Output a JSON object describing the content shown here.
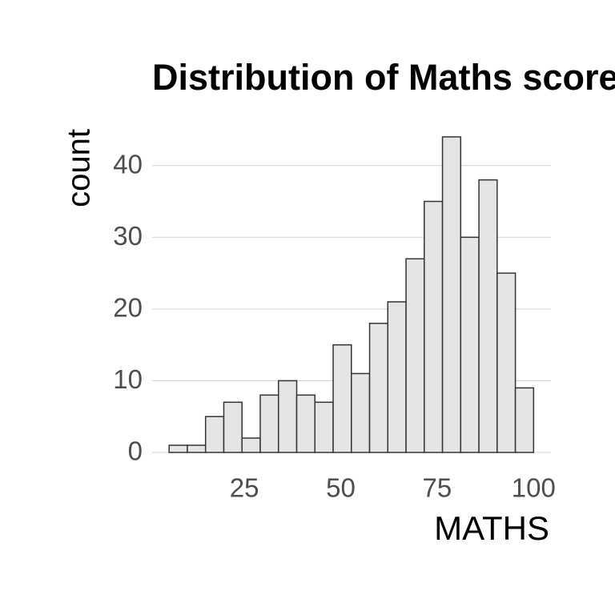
{
  "chart_data": {
    "type": "histogram",
    "title": "Distribution of Maths scores",
    "x_label": "MATHS",
    "y_label": "count",
    "bins": [
      5.5,
      10.23,
      14.95,
      19.68,
      24.4,
      29.13,
      33.85,
      38.58,
      43.3,
      48.03,
      52.75,
      57.48,
      62.2,
      66.93,
      71.65,
      76.38,
      81.1,
      85.83,
      90.55,
      95.28,
      100
    ],
    "values": [
      1,
      1,
      5,
      7,
      2,
      8,
      10,
      8,
      7,
      15,
      11,
      18,
      21,
      27,
      35,
      44,
      30,
      38,
      25,
      9
    ],
    "color": "#e5e5e5",
    "edge_color": "#333333",
    "xlim": [
      1.1,
      104.5
    ],
    "xticks": [
      25,
      50,
      75,
      100
    ],
    "ylim": [
      0,
      46
    ],
    "yticks": [
      0,
      10,
      20,
      30,
      40
    ],
    "grid": "y"
  }
}
